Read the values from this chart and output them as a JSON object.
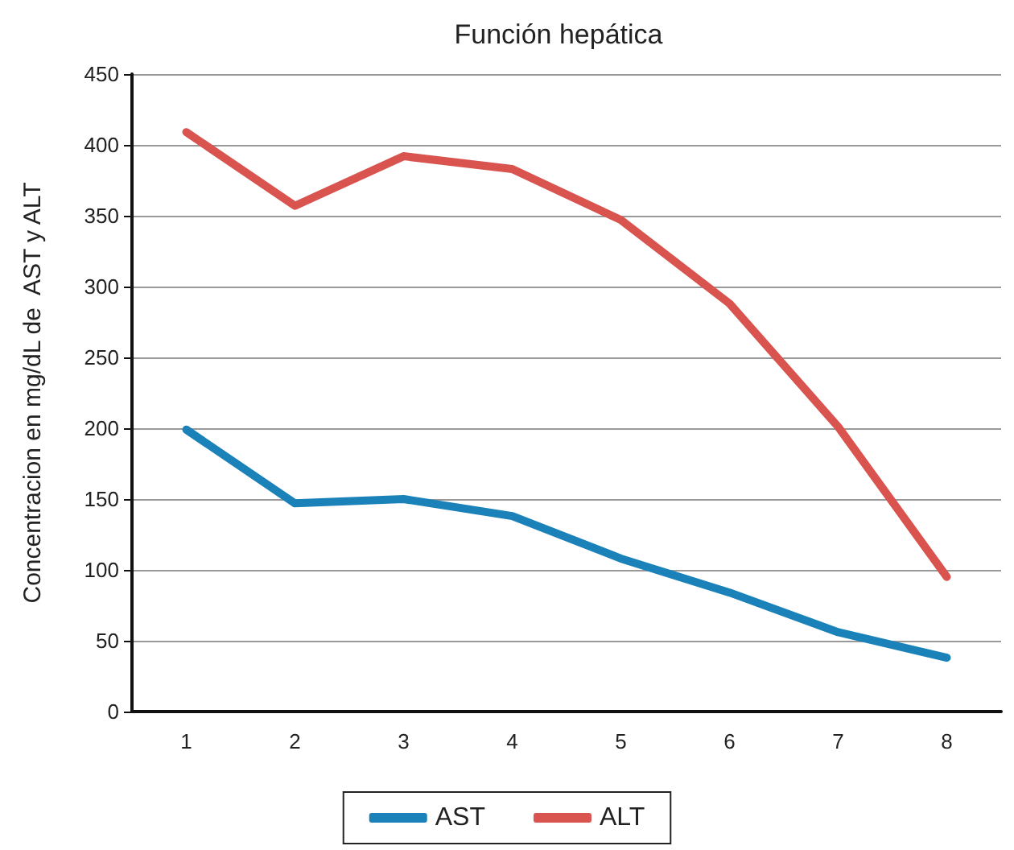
{
  "chart_data": {
    "type": "line",
    "title": "Función hepática",
    "ylabel": "Concentracion en mg/dL de  AST y ALT",
    "categories": [
      "1",
      "2",
      "3",
      "4",
      "5",
      "6",
      "7",
      "8"
    ],
    "series": [
      {
        "name": "AST",
        "color": "#1a82b8",
        "values": [
          199,
          147,
          150,
          138,
          108,
          84,
          56,
          38
        ]
      },
      {
        "name": "ALT",
        "color": "#d9534f",
        "values": [
          409,
          357,
          392,
          383,
          347,
          288,
          201,
          95
        ]
      }
    ],
    "ylim": [
      0,
      450
    ],
    "yticks": [
      0,
      50,
      100,
      150,
      200,
      250,
      300,
      350,
      400,
      450
    ],
    "grid": "y",
    "legend": "bottom",
    "marker": "none",
    "line_style": "solid"
  }
}
